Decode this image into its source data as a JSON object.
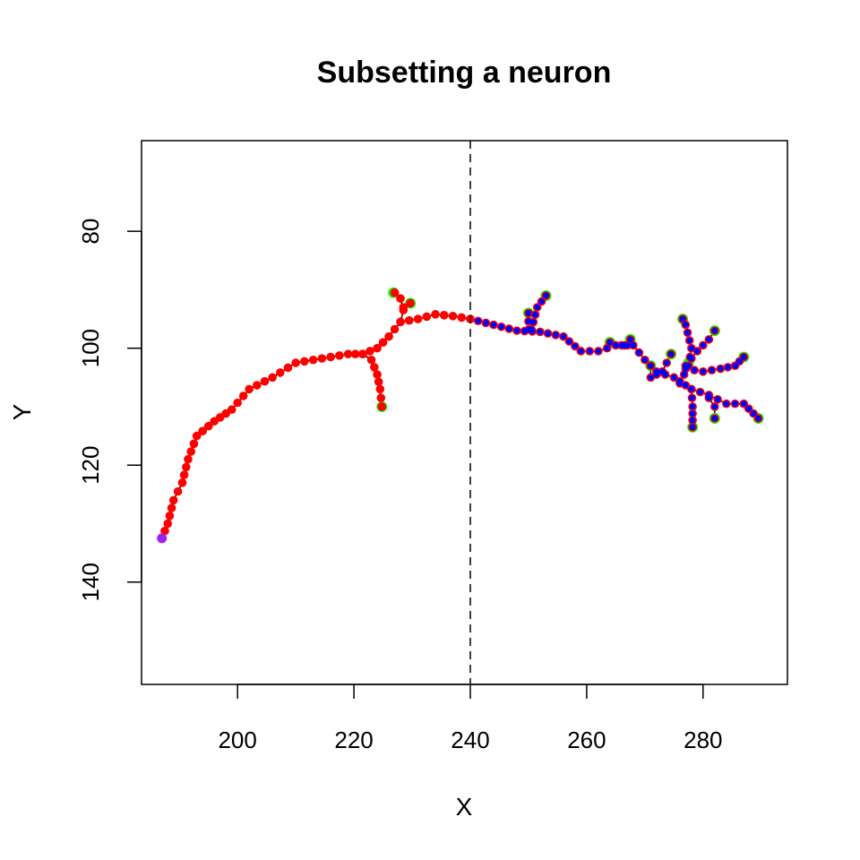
{
  "chart_data": {
    "type": "scatter",
    "title": "Subsetting a neuron",
    "xlabel": "X",
    "ylabel": "Y",
    "xlim": [
      183.5,
      294.5
    ],
    "ylim": [
      157.5,
      64.5
    ],
    "y_reversed": true,
    "xticks": [
      200,
      220,
      240,
      260,
      280
    ],
    "yticks": [
      80,
      100,
      120,
      140
    ],
    "cut_line": {
      "x": 240,
      "style": "dashed"
    },
    "colors": {
      "full_points": "#ff0000",
      "subset_points": "#0000ff",
      "endpoints": "#00ff00",
      "root": "#a020f0",
      "skeleton": "#000000"
    },
    "skeleton": [
      [
        [
          187,
          132.5
        ],
        [
          188,
          130
        ],
        [
          189,
          126
        ],
        [
          190.5,
          123
        ],
        [
          191.5,
          119
        ],
        [
          193,
          115
        ],
        [
          196,
          112.5
        ],
        [
          199,
          110.5
        ],
        [
          202,
          107
        ],
        [
          206,
          105
        ],
        [
          210,
          102.5
        ],
        [
          213,
          102
        ],
        [
          216,
          101.5
        ],
        [
          219,
          101
        ],
        [
          221.5,
          101
        ],
        [
          224,
          100
        ],
        [
          226,
          98
        ],
        [
          228,
          95.5
        ],
        [
          231,
          95
        ],
        [
          234,
          94.2
        ],
        [
          237,
          94.5
        ],
        [
          240,
          95
        ]
      ],
      [
        [
          240,
          95
        ],
        [
          244,
          96
        ],
        [
          248,
          97
        ],
        [
          252,
          97.2
        ],
        [
          256,
          98
        ],
        [
          259,
          100.5
        ],
        [
          262,
          100.5
        ],
        [
          265,
          99.5
        ],
        [
          268,
          99.5
        ],
        [
          270,
          102
        ],
        [
          272,
          104
        ],
        [
          275,
          105
        ],
        [
          278,
          107
        ],
        [
          281,
          108
        ],
        [
          284,
          109.5
        ],
        [
          287,
          109.5
        ],
        [
          289.5,
          112
        ]
      ],
      [
        [
          221.5,
          101
        ],
        [
          223,
          102
        ],
        [
          224,
          104.5
        ],
        [
          224.5,
          107
        ],
        [
          224.8,
          110
        ]
      ],
      [
        [
          228,
          95.5
        ],
        [
          228.5,
          93.5
        ],
        [
          228,
          91.5
        ],
        [
          227,
          90.5
        ]
      ],
      [
        [
          228.5,
          93
        ],
        [
          229.7,
          92.3
        ]
      ],
      [
        [
          250,
          96.8
        ],
        [
          250,
          94
        ]
      ],
      [
        [
          250.5,
          96.8
        ],
        [
          251.5,
          93
        ],
        [
          253,
          91
        ]
      ],
      [
        [
          266,
          99.5
        ],
        [
          264,
          99
        ]
      ],
      [
        [
          267,
          99.5
        ],
        [
          267.5,
          98.5
        ]
      ],
      [
        [
          271,
          103
        ],
        [
          271,
          105
        ],
        [
          273,
          104
        ]
      ],
      [
        [
          273,
          104
        ],
        [
          274.5,
          101
        ]
      ],
      [
        [
          276,
          106
        ],
        [
          277.5,
          103
        ],
        [
          278,
          100
        ],
        [
          277,
          96
        ],
        [
          276.5,
          95
        ]
      ],
      [
        [
          277,
          103
        ],
        [
          279,
          100.5
        ],
        [
          281,
          98.5
        ],
        [
          282,
          97
        ]
      ],
      [
        [
          277,
          103.5
        ],
        [
          280,
          104
        ],
        [
          283,
          103.5
        ],
        [
          285.5,
          103
        ],
        [
          287,
          101.5
        ]
      ],
      [
        [
          278,
          107
        ],
        [
          278.2,
          110
        ],
        [
          278.2,
          113.5
        ]
      ],
      [
        [
          281,
          108.5
        ],
        [
          282,
          110
        ],
        [
          282,
          112
        ]
      ]
    ],
    "endpoints": [
      [
        226.8,
        90.5
      ],
      [
        229.7,
        92.3
      ],
      [
        224.8,
        110
      ],
      [
        250,
        94
      ],
      [
        253,
        91
      ],
      [
        264,
        99
      ],
      [
        267.5,
        98.5
      ],
      [
        271,
        103
      ],
      [
        274.5,
        101
      ],
      [
        276.5,
        95
      ],
      [
        282,
        97
      ],
      [
        277.5,
        102.5
      ],
      [
        287,
        101.5
      ],
      [
        278.2,
        113.5
      ],
      [
        282,
        112
      ],
      [
        289.5,
        112
      ]
    ],
    "root": [
      187,
      132.5
    ]
  }
}
